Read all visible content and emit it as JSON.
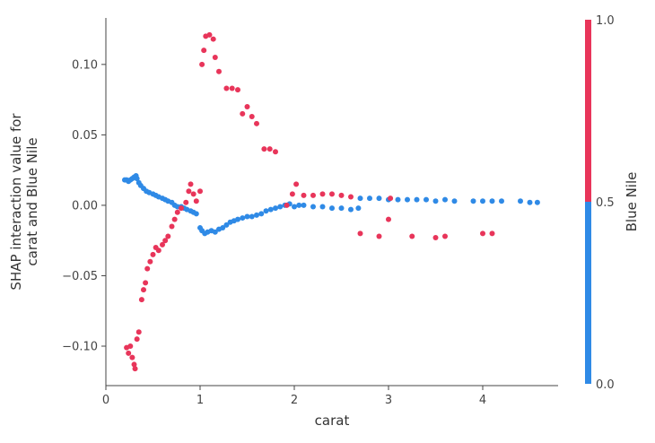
{
  "chart_data": {
    "type": "scatter",
    "xlabel": "carat",
    "ylabel_lines": [
      "SHAP interaction value for",
      "carat and Blue Nile"
    ],
    "xlim": [
      0,
      4.8
    ],
    "ylim": [
      -0.128,
      0.133
    ],
    "xticks": [
      0,
      1,
      2,
      3,
      4
    ],
    "xtick_labels": [
      "0",
      "1",
      "2",
      "3",
      "4"
    ],
    "yticks": [
      -0.1,
      -0.05,
      0.0,
      0.05,
      0.1
    ],
    "ytick_labels": [
      "−0.10",
      "−0.05",
      "0.00",
      "0.05",
      "0.10"
    ],
    "grid": false,
    "colorbar": {
      "label": "Blue Nile",
      "ticks": [
        0.0,
        0.5,
        1.0
      ],
      "tick_labels": [
        "0.0",
        "0.5",
        "1.0"
      ],
      "low_color": "#2f8ae6",
      "high_color": "#e8355a"
    },
    "series": [
      {
        "name": "Blue Nile = 0",
        "color": "#2f8ae6",
        "points": [
          [
            0.2,
            0.018
          ],
          [
            0.22,
            0.018
          ],
          [
            0.24,
            0.017
          ],
          [
            0.26,
            0.018
          ],
          [
            0.28,
            0.019
          ],
          [
            0.3,
            0.02
          ],
          [
            0.32,
            0.021
          ],
          [
            0.33,
            0.019
          ],
          [
            0.35,
            0.016
          ],
          [
            0.37,
            0.014
          ],
          [
            0.4,
            0.012
          ],
          [
            0.43,
            0.01
          ],
          [
            0.46,
            0.009
          ],
          [
            0.5,
            0.008
          ],
          [
            0.53,
            0.007
          ],
          [
            0.56,
            0.006
          ],
          [
            0.6,
            0.005
          ],
          [
            0.63,
            0.004
          ],
          [
            0.66,
            0.003
          ],
          [
            0.7,
            0.002
          ],
          [
            0.73,
            0.0
          ],
          [
            0.76,
            -0.001
          ],
          [
            0.8,
            -0.001
          ],
          [
            0.83,
            -0.002
          ],
          [
            0.86,
            -0.003
          ],
          [
            0.9,
            -0.004
          ],
          [
            0.93,
            -0.005
          ],
          [
            0.96,
            -0.006
          ],
          [
            1.0,
            -0.016
          ],
          [
            1.02,
            -0.018
          ],
          [
            1.05,
            -0.02
          ],
          [
            1.08,
            -0.019
          ],
          [
            1.12,
            -0.018
          ],
          [
            1.16,
            -0.019
          ],
          [
            1.2,
            -0.017
          ],
          [
            1.24,
            -0.016
          ],
          [
            1.28,
            -0.014
          ],
          [
            1.32,
            -0.012
          ],
          [
            1.36,
            -0.011
          ],
          [
            1.4,
            -0.01
          ],
          [
            1.45,
            -0.009
          ],
          [
            1.5,
            -0.008
          ],
          [
            1.55,
            -0.008
          ],
          [
            1.6,
            -0.007
          ],
          [
            1.65,
            -0.006
          ],
          [
            1.7,
            -0.004
          ],
          [
            1.75,
            -0.003
          ],
          [
            1.8,
            -0.002
          ],
          [
            1.85,
            -0.001
          ],
          [
            1.9,
            0.0
          ],
          [
            1.95,
            0.001
          ],
          [
            2.0,
            -0.001
          ],
          [
            2.05,
            0.0
          ],
          [
            2.1,
            0.0
          ],
          [
            2.2,
            -0.001
          ],
          [
            2.3,
            -0.001
          ],
          [
            2.4,
            -0.002
          ],
          [
            2.5,
            -0.002
          ],
          [
            2.6,
            -0.003
          ],
          [
            2.68,
            -0.002
          ],
          [
            2.7,
            0.005
          ],
          [
            2.8,
            0.005
          ],
          [
            2.9,
            0.005
          ],
          [
            3.0,
            0.004
          ],
          [
            3.1,
            0.004
          ],
          [
            3.2,
            0.004
          ],
          [
            3.3,
            0.004
          ],
          [
            3.4,
            0.004
          ],
          [
            3.5,
            0.003
          ],
          [
            3.6,
            0.004
          ],
          [
            3.7,
            0.003
          ],
          [
            3.9,
            0.003
          ],
          [
            4.0,
            0.003
          ],
          [
            4.1,
            0.003
          ],
          [
            4.2,
            0.003
          ],
          [
            4.4,
            0.003
          ],
          [
            4.5,
            0.002
          ],
          [
            4.58,
            0.002
          ]
        ]
      },
      {
        "name": "Blue Nile = 1",
        "color": "#e8355a",
        "points": [
          [
            0.22,
            -0.101
          ],
          [
            0.24,
            -0.105
          ],
          [
            0.26,
            -0.1
          ],
          [
            0.28,
            -0.108
          ],
          [
            0.3,
            -0.113
          ],
          [
            0.31,
            -0.116
          ],
          [
            0.33,
            -0.095
          ],
          [
            0.35,
            -0.09
          ],
          [
            0.38,
            -0.067
          ],
          [
            0.4,
            -0.06
          ],
          [
            0.42,
            -0.055
          ],
          [
            0.44,
            -0.045
          ],
          [
            0.47,
            -0.04
          ],
          [
            0.5,
            -0.035
          ],
          [
            0.53,
            -0.03
          ],
          [
            0.56,
            -0.032
          ],
          [
            0.6,
            -0.028
          ],
          [
            0.63,
            -0.025
          ],
          [
            0.66,
            -0.022
          ],
          [
            0.7,
            -0.015
          ],
          [
            0.73,
            -0.01
          ],
          [
            0.76,
            -0.005
          ],
          [
            0.8,
            -0.002
          ],
          [
            0.85,
            0.002
          ],
          [
            0.88,
            0.01
          ],
          [
            0.9,
            0.015
          ],
          [
            0.93,
            0.008
          ],
          [
            0.96,
            0.003
          ],
          [
            1.0,
            0.01
          ],
          [
            1.02,
            0.1
          ],
          [
            1.04,
            0.11
          ],
          [
            1.06,
            0.12
          ],
          [
            1.1,
            0.121
          ],
          [
            1.14,
            0.118
          ],
          [
            1.16,
            0.105
          ],
          [
            1.2,
            0.095
          ],
          [
            1.28,
            0.083
          ],
          [
            1.34,
            0.083
          ],
          [
            1.4,
            0.082
          ],
          [
            1.45,
            0.065
          ],
          [
            1.5,
            0.07
          ],
          [
            1.55,
            0.063
          ],
          [
            1.6,
            0.058
          ],
          [
            1.68,
            0.04
          ],
          [
            1.74,
            0.04
          ],
          [
            1.8,
            0.038
          ],
          [
            1.92,
            0.0
          ],
          [
            1.98,
            0.008
          ],
          [
            2.02,
            0.015
          ],
          [
            2.1,
            0.007
          ],
          [
            2.2,
            0.007
          ],
          [
            2.3,
            0.008
          ],
          [
            2.4,
            0.008
          ],
          [
            2.5,
            0.007
          ],
          [
            2.6,
            0.006
          ],
          [
            2.7,
            -0.02
          ],
          [
            2.9,
            -0.022
          ],
          [
            3.0,
            -0.01
          ],
          [
            3.02,
            0.005
          ],
          [
            3.25,
            -0.022
          ],
          [
            3.5,
            -0.023
          ],
          [
            3.6,
            -0.022
          ],
          [
            4.0,
            -0.02
          ],
          [
            4.1,
            -0.02
          ]
        ]
      }
    ]
  }
}
